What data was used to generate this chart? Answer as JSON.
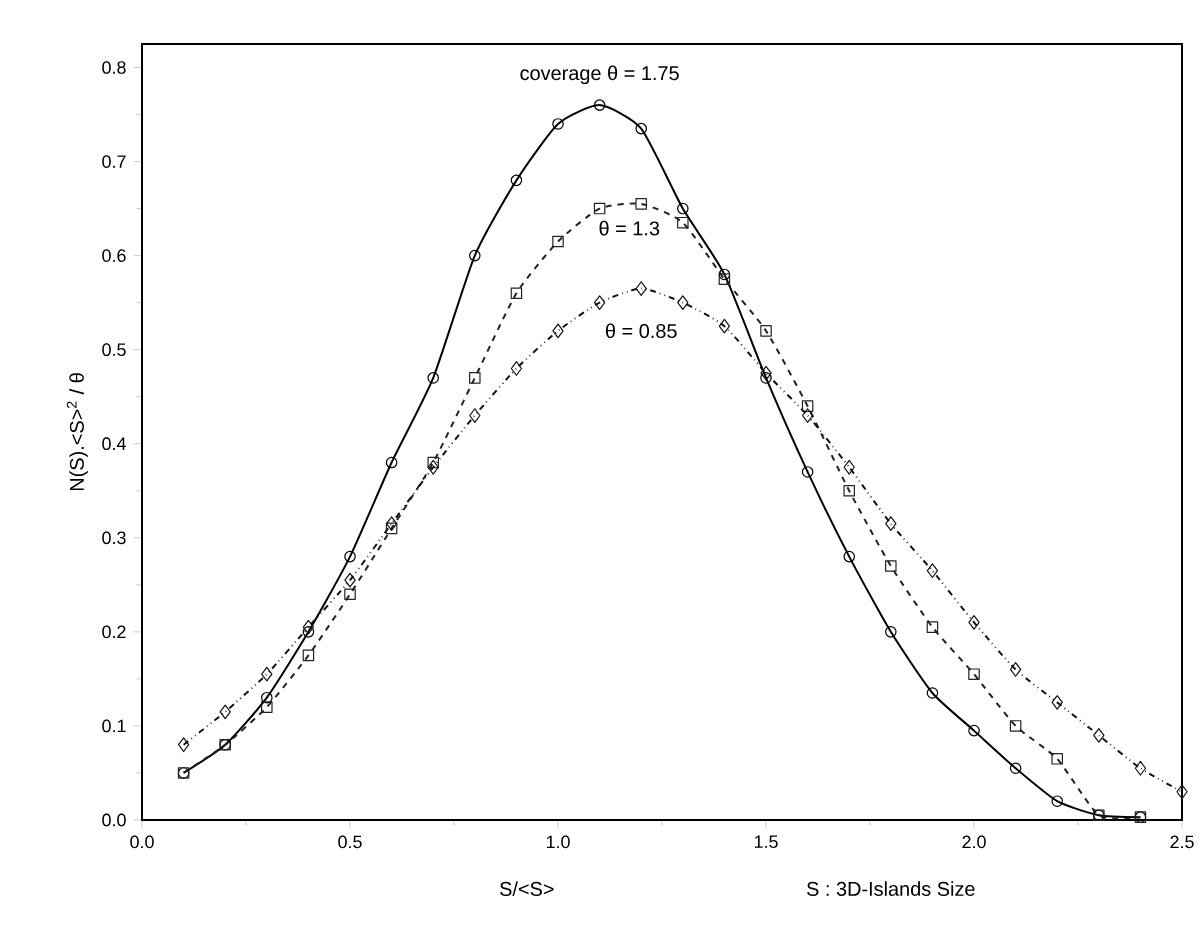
{
  "chart_data": {
    "type": "line",
    "xlabel": "S/<S>",
    "ylabel": "N(S).<S>$^{2}$ / θ",
    "annotations": [
      "S : 3D-Islands  Size"
    ],
    "x": [
      0.1,
      0.2,
      0.3,
      0.4,
      0.5,
      0.6,
      0.7,
      0.8,
      0.9,
      1.0,
      1.1,
      1.2,
      1.3,
      1.4,
      1.5,
      1.6,
      1.7,
      1.8,
      1.9,
      2.0,
      2.1,
      2.2,
      2.3,
      2.4
    ],
    "series": [
      {
        "name": "coverage θ = 1.75",
        "color": "#000000",
        "marker": "circle",
        "line_style": "solid",
        "values": [
          0.05,
          0.08,
          0.13,
          0.2,
          0.28,
          0.38,
          0.47,
          0.6,
          0.68,
          0.74,
          0.76,
          0.735,
          0.65,
          0.58,
          0.47,
          0.37,
          0.28,
          0.2,
          0.135,
          0.095,
          0.055,
          0.02,
          0.005,
          0.003
        ]
      },
      {
        "name": "θ = 1.3",
        "color": "#222222",
        "marker": "square",
        "line_style": "dashed",
        "values": [
          0.05,
          0.08,
          0.12,
          0.175,
          0.24,
          0.31,
          0.38,
          0.47,
          0.56,
          0.615,
          0.65,
          0.655,
          0.635,
          0.575,
          0.52,
          0.44,
          0.35,
          0.27,
          0.205,
          0.155,
          0.1,
          0.065,
          0.005,
          0.003
        ]
      },
      {
        "name": "θ = 0.85",
        "color": "#111111",
        "marker": "diamond",
        "line_style": "dotted",
        "x": [
          0.1,
          0.2,
          0.3,
          0.4,
          0.5,
          0.6,
          0.7,
          0.8,
          0.9,
          1.0,
          1.1,
          1.2,
          1.3,
          1.4,
          1.5,
          1.6,
          1.7,
          1.8,
          1.9,
          2.0,
          2.1,
          2.2,
          2.3,
          2.4,
          2.5
        ],
        "values": [
          0.08,
          0.115,
          0.155,
          0.205,
          0.255,
          0.315,
          0.375,
          0.43,
          0.48,
          0.52,
          0.55,
          0.565,
          0.55,
          0.525,
          0.475,
          0.43,
          0.375,
          0.315,
          0.265,
          0.21,
          0.16,
          0.125,
          0.09,
          0.055,
          0.03
        ]
      }
    ],
    "xlim": [
      0,
      2.5
    ],
    "ylim": [
      0,
      0.825
    ],
    "xticks": [
      {
        "value": 0,
        "label": "0.0"
      },
      {
        "value": 0.5,
        "label": "0.5"
      },
      {
        "value": 1,
        "label": "1.0"
      },
      {
        "value": 1.5,
        "label": "1.5"
      },
      {
        "value": 2,
        "label": "2.0"
      },
      {
        "value": 2.5,
        "label": "2.5"
      }
    ],
    "yticks": [
      {
        "value": 0,
        "label": "0.0"
      },
      {
        "value": 0.1,
        "label": "0.1"
      },
      {
        "value": 0.2,
        "label": "0.2"
      },
      {
        "value": 0.3,
        "label": "0.3"
      },
      {
        "value": 0.4,
        "label": "0.4"
      },
      {
        "value": 0.5,
        "label": "0.5"
      },
      {
        "value": 0.6,
        "label": "0.6"
      },
      {
        "value": 0.7,
        "label": "0.7"
      },
      {
        "value": 0.8,
        "label": "0.8"
      }
    ],
    "grid": false,
    "legend": false
  }
}
